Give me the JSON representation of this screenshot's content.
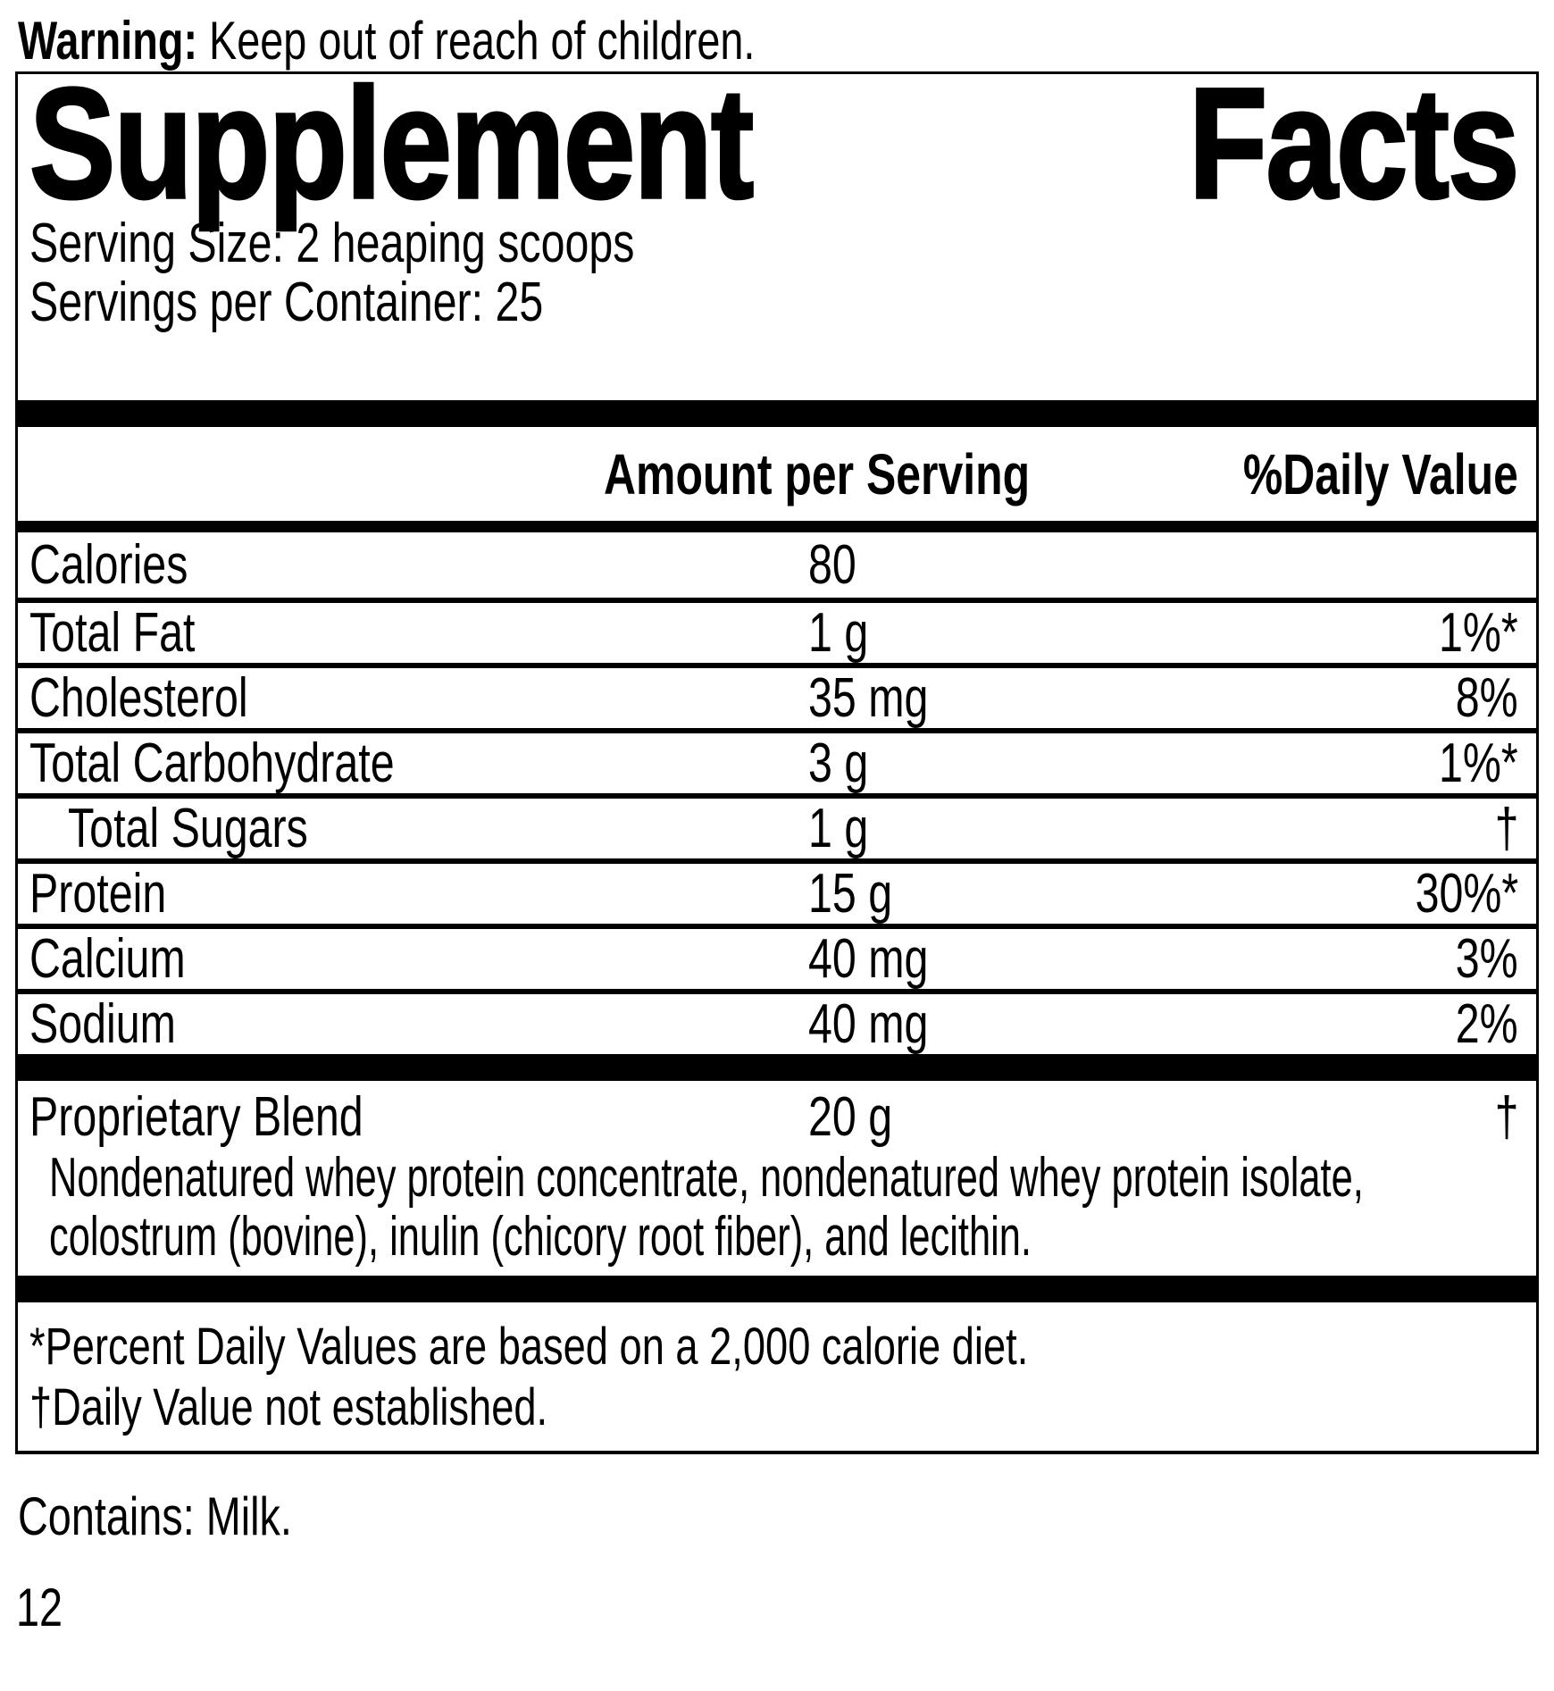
{
  "warning": {
    "bold": "Warning:",
    "rest": " Keep out of reach of children."
  },
  "panel": {
    "title_word1": "Supplement",
    "title_word2": "Facts",
    "serving_size": "Serving Size: 2 heaping scoops",
    "servings_per_container": "Servings per Container: 25",
    "columns": {
      "amount": "Amount per Serving",
      "daily_value": "%Daily Value"
    },
    "rows": [
      {
        "label": "Calories",
        "amount": "80",
        "dv": "",
        "indent": false
      },
      {
        "label": "Total Fat",
        "amount": "1 g",
        "dv": "1%*",
        "indent": false
      },
      {
        "label": "Cholesterol",
        "amount": "35 mg",
        "dv": "8%",
        "indent": false
      },
      {
        "label": "Total Carbohydrate",
        "amount": "3 g",
        "dv": "1%*",
        "indent": false
      },
      {
        "label": "Total Sugars",
        "amount": "1 g",
        "dv": "†",
        "indent": true
      },
      {
        "label": "Protein",
        "amount": "15 g",
        "dv": "30%*",
        "indent": false
      },
      {
        "label": "Calcium",
        "amount": "40 mg",
        "dv": "3%",
        "indent": false
      },
      {
        "label": "Sodium",
        "amount": "40 mg",
        "dv": "2%",
        "indent": false
      }
    ],
    "blend": {
      "label": "Proprietary Blend",
      "amount": "20 g",
      "dv": "†",
      "description_lines": [
        "Nondenatured whey protein concentrate, nondenatured whey protein isolate,",
        "colostrum (bovine), inulin (chicory root fiber), and lecithin."
      ]
    },
    "footnotes": [
      "*Percent Daily Values are based on a 2,000 calorie diet.",
      "†Daily Value not established."
    ]
  },
  "footer": {
    "contains": "Contains: Milk.",
    "page_number": "12"
  },
  "colors": {
    "ink": "#000000",
    "background": "#ffffff"
  }
}
